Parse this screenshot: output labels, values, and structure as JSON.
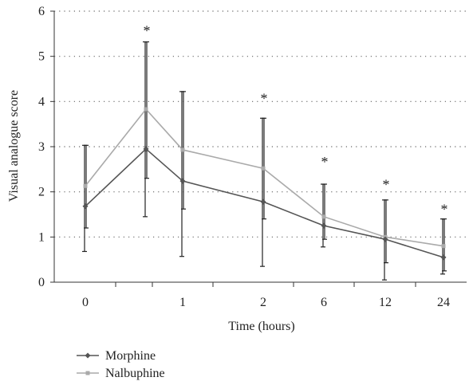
{
  "chart_data": {
    "type": "line",
    "xlabel": "Time (hours)",
    "ylabel": "Visual analogue score",
    "ylim": [
      0,
      6
    ],
    "yticks": [
      "0",
      "1",
      "2",
      "3",
      "4",
      "5",
      "6"
    ],
    "categories": [
      "0",
      "",
      "1",
      "2",
      "6",
      "12",
      "24"
    ],
    "grid": "horizontal dotted",
    "legend_position": "bottom-left",
    "series": [
      {
        "name": "Morphine",
        "color": "#555555",
        "marker": "diamond",
        "values": [
          1.68,
          2.95,
          2.24,
          1.78,
          1.25,
          0.95,
          0.55
        ],
        "error_low": [
          0.68,
          1.45,
          0.57,
          0.35,
          0.78,
          0.05,
          0.18
        ],
        "error_high": [
          3.03,
          5.32,
          4.22,
          3.63,
          2.17,
          1.82,
          1.4
        ]
      },
      {
        "name": "Nalbuphine",
        "color": "#aaaaaa",
        "marker": "square",
        "values": [
          2.13,
          3.83,
          2.93,
          2.52,
          1.45,
          1.0,
          0.8
        ],
        "error_low": [
          1.2,
          2.3,
          1.62,
          1.4,
          0.95,
          0.43,
          0.25
        ],
        "error_high": [
          3.03,
          5.32,
          4.22,
          3.63,
          2.17,
          1.82,
          1.4
        ]
      }
    ],
    "significance_marker": "*",
    "significant_indices": [
      1,
      3,
      4,
      5,
      6
    ],
    "significance_y": [
      5.6,
      4.1,
      2.7,
      2.2,
      1.65
    ]
  }
}
